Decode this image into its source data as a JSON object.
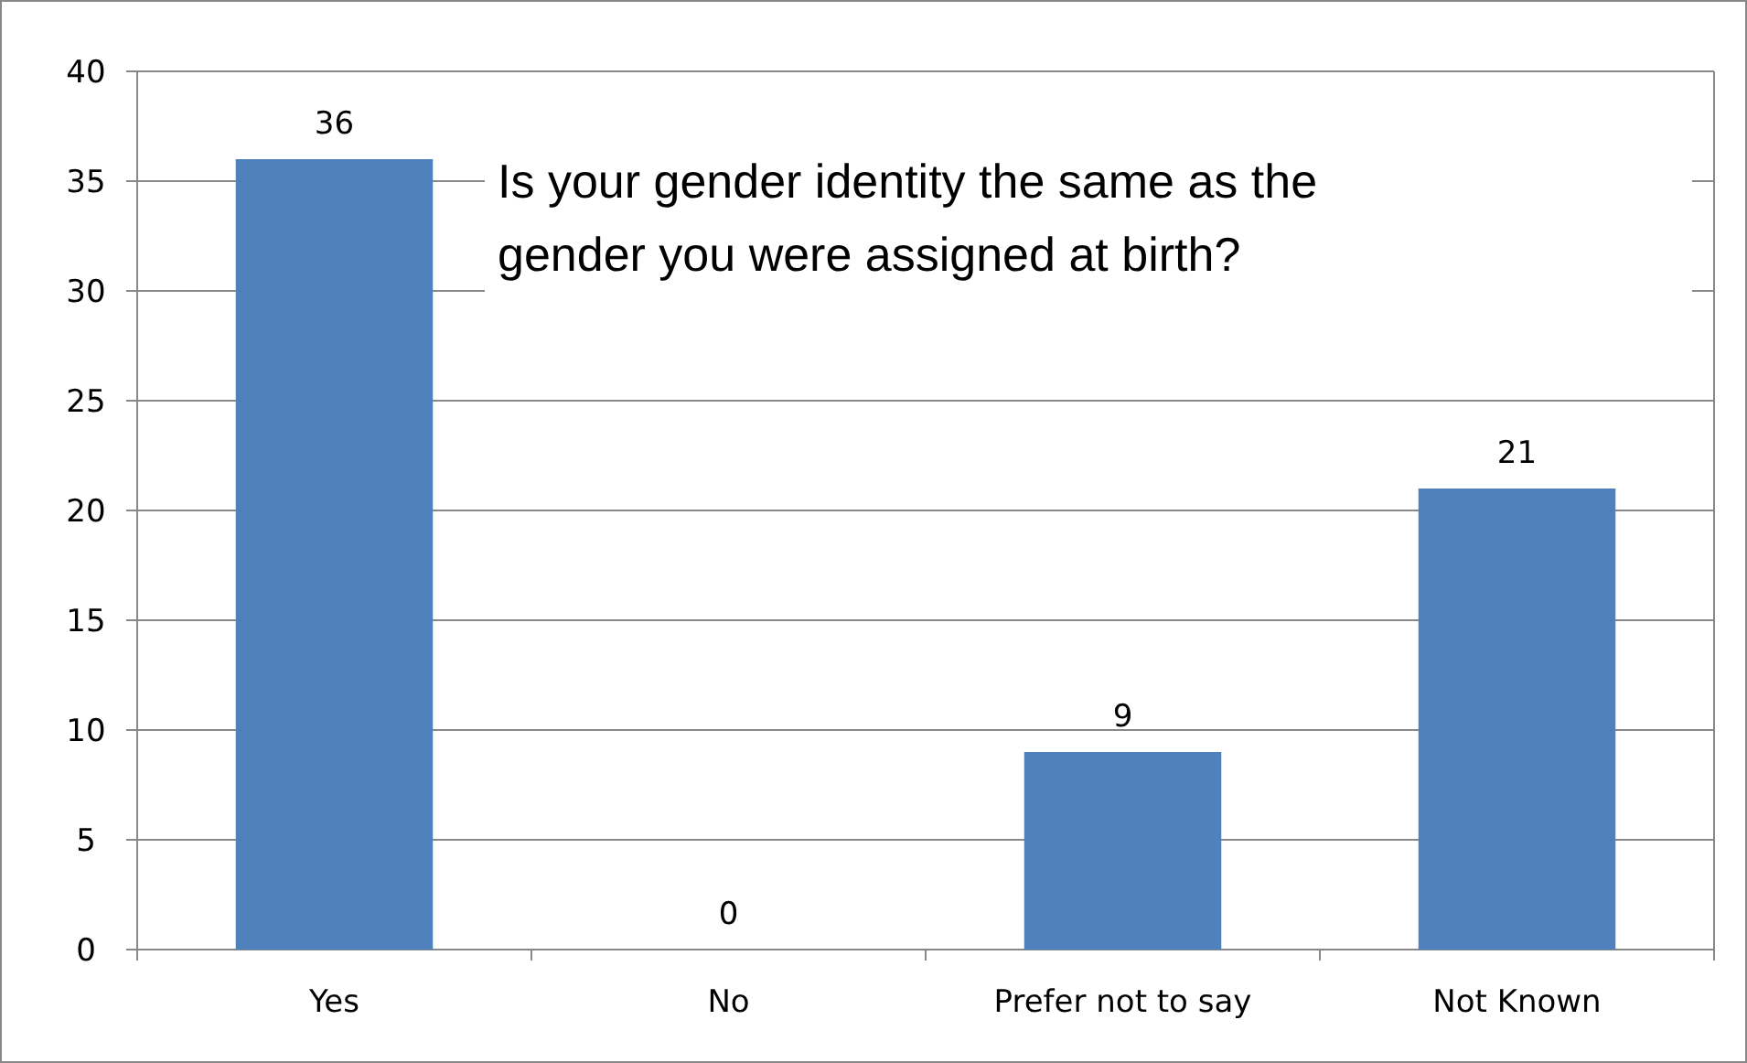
{
  "chart_data": {
    "type": "bar",
    "title": "Is your gender identity the same as the gender you were assigned at birth?",
    "categories": [
      "Yes",
      "No",
      "Prefer not to say",
      "Not Known"
    ],
    "values": [
      36,
      0,
      9,
      21
    ],
    "color": "#4f81bd",
    "ylim": [
      0,
      40
    ],
    "yticks": [
      0,
      5,
      10,
      15,
      20,
      25,
      30,
      35,
      40
    ],
    "grid": "y",
    "data_labels": true
  }
}
